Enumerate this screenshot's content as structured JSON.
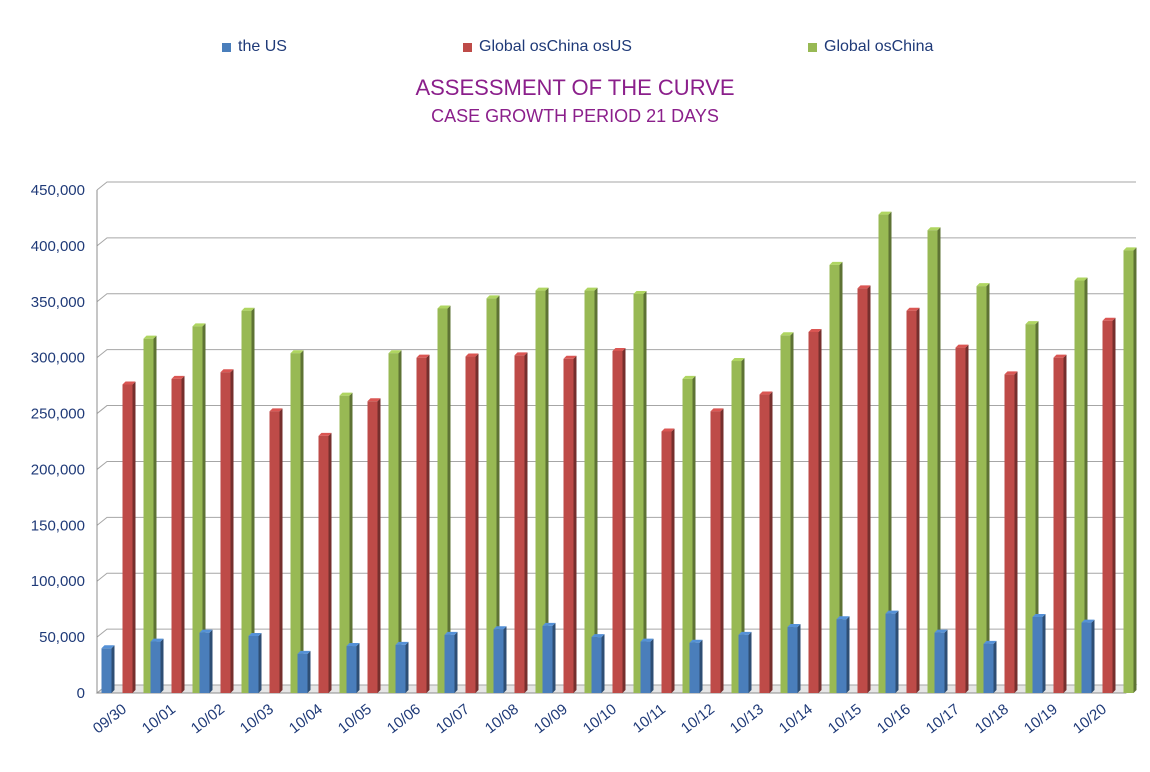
{
  "chart_data": {
    "type": "bar",
    "title": "ASSESSMENT OF THE CURVE",
    "subtitle": "CASE GROWTH PERIOD 21 DAYS",
    "xlabel": "",
    "ylabel": "",
    "ylim": [
      0,
      450000
    ],
    "yticks": [
      "0",
      "50,000",
      "100,000",
      "150,000",
      "200,000",
      "250,000",
      "300,000",
      "350,000",
      "400,000",
      "450,000"
    ],
    "grid": true,
    "legend_position": "top",
    "categories": [
      "09/30",
      "10/01",
      "10/02",
      "10/03",
      "10/04",
      "10/05",
      "10/06",
      "10/07",
      "10/08",
      "10/09",
      "10/10",
      "10/11",
      "10/12",
      "10/13",
      "10/14",
      "10/15",
      "10/16",
      "10/17",
      "10/18",
      "10/19",
      "10/20"
    ],
    "series": [
      {
        "name": "the US",
        "color": "#4a7ebb",
        "values": [
          40000,
          46000,
          54000,
          51000,
          35000,
          42000,
          43000,
          52000,
          57000,
          60000,
          50000,
          46000,
          45000,
          52000,
          59000,
          66000,
          71000,
          54000,
          44000,
          68000,
          63000
        ]
      },
      {
        "name": "Global osChina osUS",
        "color": "#be4b48",
        "values": [
          276000,
          281000,
          287000,
          252000,
          230000,
          261000,
          300000,
          301000,
          302000,
          299000,
          306000,
          234000,
          252000,
          267000,
          323000,
          362000,
          342000,
          309000,
          285000,
          300000,
          333000
        ]
      },
      {
        "name": "Global osChina",
        "color": "#98b954",
        "values": [
          317000,
          328000,
          342000,
          304000,
          266000,
          304000,
          344000,
          353000,
          360000,
          360000,
          357000,
          281000,
          297000,
          320000,
          383000,
          428000,
          414000,
          364000,
          330000,
          369000,
          396000
        ]
      }
    ]
  },
  "colors": {
    "title": "#8b1f8b",
    "axis_text": "#1f3a78",
    "grid": "#a6a6a6"
  }
}
